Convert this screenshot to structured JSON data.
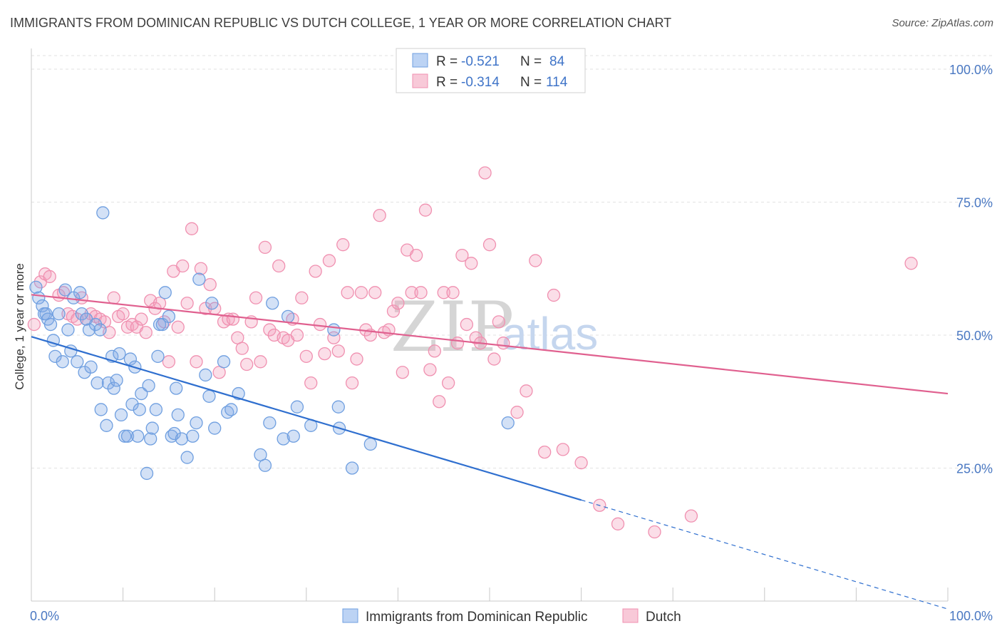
{
  "title": "IMMIGRANTS FROM DOMINICAN REPUBLIC VS DUTCH COLLEGE, 1 YEAR OR MORE CORRELATION CHART",
  "source": "Source: ZipAtlas.com",
  "watermark": {
    "zip": "ZIP",
    "atlas": "atlas"
  },
  "colors": {
    "blue": "#6f9fe0",
    "blue_line": "#2f6fcf",
    "pink": "#f090b0",
    "pink_line": "#e0608f",
    "tick": "#4a78c2"
  },
  "legend": {
    "r_label": "R =",
    "n_label": "N =",
    "entries": [
      {
        "r": "-0.521",
        "n": "84"
      },
      {
        "r": "-0.314",
        "n": "114"
      }
    ]
  },
  "bottom_legend": [
    "Immigrants from Dominican Republic",
    "Dutch"
  ],
  "chart_data": {
    "type": "scatter",
    "title": "IMMIGRANTS FROM DOMINICAN REPUBLIC VS DUTCH COLLEGE, 1 YEAR OR MORE CORRELATION CHART",
    "xlabel": "",
    "ylabel": "College, 1 year or more",
    "xlim": [
      0,
      100
    ],
    "ylim": [
      0,
      105
    ],
    "x_tick_labels": [
      "0.0%",
      "100.0%"
    ],
    "y_ticks": [
      25,
      50,
      75,
      100
    ],
    "y_tick_labels": [
      "25.0%",
      "50.0%",
      "75.0%",
      "100.0%"
    ],
    "grid": true,
    "legend_position": "top-center",
    "series": [
      {
        "name": "Immigrants from Dominican Republic",
        "color": "#6f9fe0",
        "trend": {
          "x0": 0,
          "y0": 49.7,
          "x1": 60,
          "y1": 19.0,
          "dash_to_x": 100,
          "dash_to_y": -1.5
        },
        "points": [
          [
            0.5,
            59
          ],
          [
            0.8,
            57
          ],
          [
            1.2,
            55.5
          ],
          [
            1.4,
            54
          ],
          [
            1.6,
            54
          ],
          [
            1.8,
            53
          ],
          [
            2.1,
            52
          ],
          [
            2.4,
            49
          ],
          [
            2.6,
            46
          ],
          [
            3,
            54
          ],
          [
            3.4,
            45
          ],
          [
            3.7,
            58.5
          ],
          [
            4,
            51
          ],
          [
            4.3,
            47
          ],
          [
            4.6,
            57
          ],
          [
            5,
            45
          ],
          [
            5.3,
            58
          ],
          [
            5.5,
            54
          ],
          [
            5.8,
            43
          ],
          [
            6,
            53
          ],
          [
            6.3,
            51
          ],
          [
            6.5,
            44
          ],
          [
            7,
            52
          ],
          [
            7.2,
            41
          ],
          [
            7.5,
            51
          ],
          [
            7.6,
            36
          ],
          [
            7.8,
            73
          ],
          [
            8.2,
            33
          ],
          [
            8.4,
            41
          ],
          [
            8.8,
            46
          ],
          [
            9,
            40
          ],
          [
            9.3,
            41.5
          ],
          [
            9.6,
            46.5
          ],
          [
            9.8,
            35
          ],
          [
            10.2,
            31
          ],
          [
            10.5,
            31
          ],
          [
            10.8,
            45.5
          ],
          [
            11,
            37
          ],
          [
            11.3,
            44
          ],
          [
            11.6,
            31
          ],
          [
            11.8,
            36
          ],
          [
            12,
            39
          ],
          [
            12.6,
            24
          ],
          [
            12.8,
            40.5
          ],
          [
            13,
            30.5
          ],
          [
            13.2,
            32.5
          ],
          [
            13.6,
            36
          ],
          [
            13.8,
            46
          ],
          [
            14,
            52
          ],
          [
            14.3,
            52
          ],
          [
            14.6,
            58
          ],
          [
            15,
            53.5
          ],
          [
            15.3,
            31
          ],
          [
            15.6,
            31.5
          ],
          [
            15.8,
            40
          ],
          [
            16,
            35
          ],
          [
            16.4,
            30.5
          ],
          [
            17,
            27
          ],
          [
            17.6,
            31
          ],
          [
            18,
            33.5
          ],
          [
            18.3,
            60.5
          ],
          [
            19,
            42.5
          ],
          [
            19.4,
            38.5
          ],
          [
            19.7,
            56
          ],
          [
            20,
            32.5
          ],
          [
            21,
            45
          ],
          [
            21.4,
            35.5
          ],
          [
            21.8,
            36
          ],
          [
            22.6,
            39
          ],
          [
            25,
            27.5
          ],
          [
            25.5,
            25.5
          ],
          [
            26,
            33.5
          ],
          [
            26.3,
            56
          ],
          [
            27.5,
            30.5
          ],
          [
            28,
            53.5
          ],
          [
            28.6,
            31
          ],
          [
            29,
            36.5
          ],
          [
            30.5,
            33
          ],
          [
            33,
            51
          ],
          [
            33.5,
            36.5
          ],
          [
            33.6,
            32.5
          ],
          [
            35,
            25
          ],
          [
            37,
            29.5
          ],
          [
            52,
            33.5
          ]
        ]
      },
      {
        "name": "Dutch",
        "color": "#f090b0",
        "trend": {
          "x0": 0,
          "y0": 57.6,
          "x1": 100,
          "y1": 39.0
        },
        "points": [
          [
            0.3,
            52
          ],
          [
            1,
            60
          ],
          [
            1.5,
            61.5
          ],
          [
            2,
            61
          ],
          [
            3,
            57.5
          ],
          [
            3.5,
            58
          ],
          [
            4,
            54
          ],
          [
            4.5,
            53.5
          ],
          [
            5,
            53
          ],
          [
            5.5,
            57
          ],
          [
            6,
            53
          ],
          [
            6.5,
            54
          ],
          [
            7,
            53.5
          ],
          [
            7.5,
            53
          ],
          [
            8,
            52.5
          ],
          [
            8.5,
            50.5
          ],
          [
            9,
            57
          ],
          [
            9.5,
            53.5
          ],
          [
            10,
            54
          ],
          [
            10.5,
            51.5
          ],
          [
            11,
            52
          ],
          [
            11.5,
            51.5
          ],
          [
            12,
            53
          ],
          [
            12.5,
            50.5
          ],
          [
            13,
            56.5
          ],
          [
            13.5,
            55
          ],
          [
            14,
            56
          ],
          [
            14.5,
            52.5
          ],
          [
            15,
            45
          ],
          [
            15.5,
            62
          ],
          [
            16,
            51.5
          ],
          [
            16.5,
            63
          ],
          [
            17,
            56
          ],
          [
            17.5,
            70
          ],
          [
            18,
            45
          ],
          [
            18.5,
            62.5
          ],
          [
            19,
            55
          ],
          [
            19.5,
            59.5
          ],
          [
            20,
            55
          ],
          [
            20.5,
            43
          ],
          [
            21,
            52.5
          ],
          [
            21.5,
            53
          ],
          [
            22,
            53
          ],
          [
            22.5,
            49.5
          ],
          [
            23,
            47.5
          ],
          [
            23.5,
            44.5
          ],
          [
            24,
            52.5
          ],
          [
            24.5,
            57
          ],
          [
            25,
            45
          ],
          [
            25.5,
            66.5
          ],
          [
            26,
            51
          ],
          [
            26.5,
            50
          ],
          [
            27,
            63
          ],
          [
            27.5,
            49.5
          ],
          [
            28,
            49
          ],
          [
            28.5,
            53
          ],
          [
            29,
            50
          ],
          [
            29.5,
            57
          ],
          [
            30,
            46
          ],
          [
            30.5,
            41
          ],
          [
            31,
            62
          ],
          [
            31.5,
            52
          ],
          [
            32,
            46.5
          ],
          [
            32.5,
            64
          ],
          [
            33,
            49.5
          ],
          [
            33.5,
            47
          ],
          [
            34,
            67
          ],
          [
            34.5,
            58
          ],
          [
            35,
            41
          ],
          [
            35.5,
            45.5
          ],
          [
            36,
            58
          ],
          [
            36.5,
            51
          ],
          [
            37,
            50
          ],
          [
            37.5,
            58
          ],
          [
            38,
            72.5
          ],
          [
            38.5,
            50.5
          ],
          [
            39,
            51
          ],
          [
            39.5,
            54.5
          ],
          [
            40,
            56
          ],
          [
            40.5,
            43
          ],
          [
            41,
            66
          ],
          [
            41.5,
            58
          ],
          [
            42,
            65
          ],
          [
            42.5,
            58
          ],
          [
            43,
            73.5
          ],
          [
            43.5,
            43.5
          ],
          [
            44,
            47
          ],
          [
            44.5,
            37.5
          ],
          [
            45,
            58
          ],
          [
            45.5,
            41
          ],
          [
            46,
            58
          ],
          [
            46.5,
            48.5
          ],
          [
            47,
            65
          ],
          [
            47.5,
            52
          ],
          [
            48,
            63.5
          ],
          [
            48.5,
            49.5
          ],
          [
            49,
            48.5
          ],
          [
            49.5,
            80.5
          ],
          [
            50,
            67
          ],
          [
            50.5,
            45.5
          ],
          [
            51,
            52.5
          ],
          [
            51.5,
            48.5
          ],
          [
            53,
            35.5
          ],
          [
            54,
            39.5
          ],
          [
            55,
            64
          ],
          [
            56,
            28
          ],
          [
            57,
            57.5
          ],
          [
            58,
            28.5
          ],
          [
            60,
            26
          ],
          [
            62,
            18
          ],
          [
            64,
            14.5
          ],
          [
            68,
            13
          ],
          [
            72,
            16
          ],
          [
            96,
            63.5
          ]
        ]
      }
    ]
  }
}
